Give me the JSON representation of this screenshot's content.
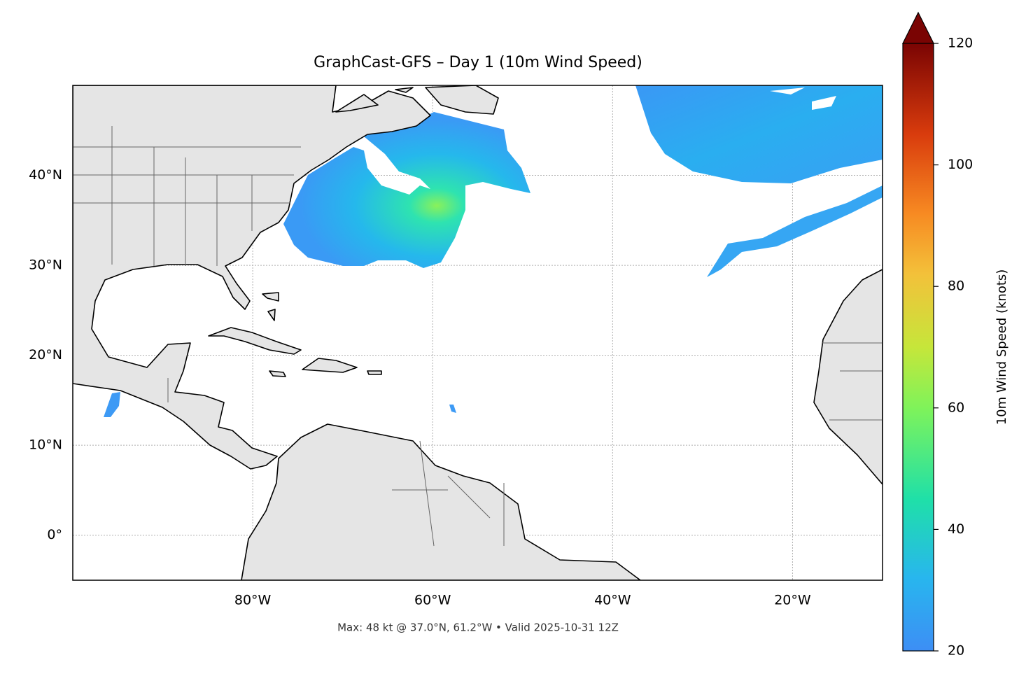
{
  "title": "GraphCast-GFS – Day 1 (10m Wind Speed)",
  "footer": "Max: 48 kt @ 37.0°N, 61.2°W • Valid 2025-10-31 12Z",
  "map": {
    "xlim": [
      -100,
      -10
    ],
    "ylim": [
      -5,
      50
    ],
    "grid": true,
    "xticks": [
      {
        "value": -80,
        "label": "80°W"
      },
      {
        "value": -60,
        "label": "60°W"
      },
      {
        "value": -40,
        "label": "40°W"
      },
      {
        "value": -20,
        "label": "20°W"
      }
    ],
    "yticks": [
      {
        "value": 0,
        "label": "0°"
      },
      {
        "value": 10,
        "label": "10°N"
      },
      {
        "value": 20,
        "label": "20°N"
      },
      {
        "value": 30,
        "label": "30°N"
      },
      {
        "value": 40,
        "label": "40°N"
      }
    ]
  },
  "colorbar": {
    "label": "10m Wind Speed (knots)",
    "lim": [
      20,
      120
    ],
    "ticks": [
      20,
      40,
      60,
      80,
      100,
      120
    ]
  }
}
